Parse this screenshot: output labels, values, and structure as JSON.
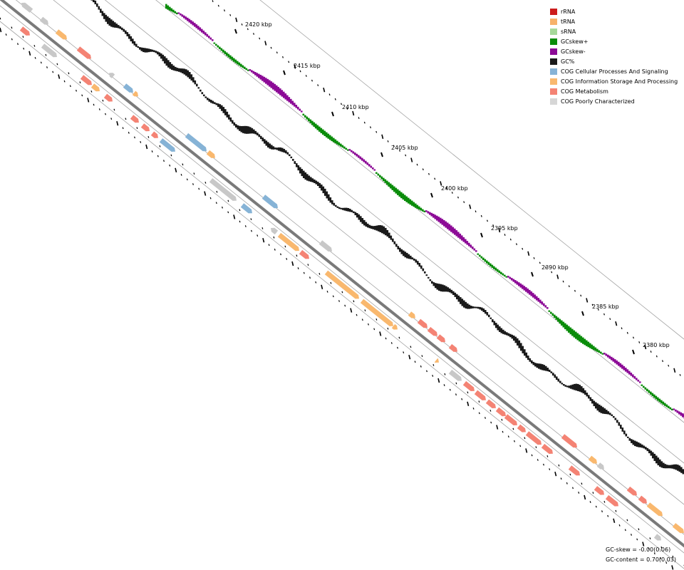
{
  "legend": {
    "items": [
      {
        "label": "rRNA",
        "color": "#cc1c1c"
      },
      {
        "label": "tRNA",
        "color": "#f7b26b"
      },
      {
        "label": "sRNA",
        "color": "#a6d99a"
      },
      {
        "label": "GCskew+",
        "color": "#0a8c0a"
      },
      {
        "label": "GCskew-",
        "color": "#8c0a96"
      },
      {
        "label": "GC%",
        "color": "#1a1a1a"
      },
      {
        "label": "COG Cellular Processes And Signaling",
        "color": "#86b3d6"
      },
      {
        "label": "COG Information Storage And Processing",
        "color": "#f9b86e"
      },
      {
        "label": "COG Metabolism",
        "color": "#f48374"
      },
      {
        "label": "COG Poorly Characterized",
        "color": "#d6d6d6"
      }
    ]
  },
  "ticks": [
    {
      "label": "2420 kbp"
    },
    {
      "label": "2415 kbp"
    },
    {
      "label": "2410 kbp"
    },
    {
      "label": "2405 kbp"
    },
    {
      "label": "2400 kbp"
    },
    {
      "label": "2395 kbp"
    },
    {
      "label": "2390 kbp"
    },
    {
      "label": "2385 kbp"
    },
    {
      "label": "2380 kbp"
    }
  ],
  "stats": {
    "gc_skew": "GC-skew = -0.00(0.06)",
    "gc_content": "GC-content = 0.70(0.03)"
  }
}
